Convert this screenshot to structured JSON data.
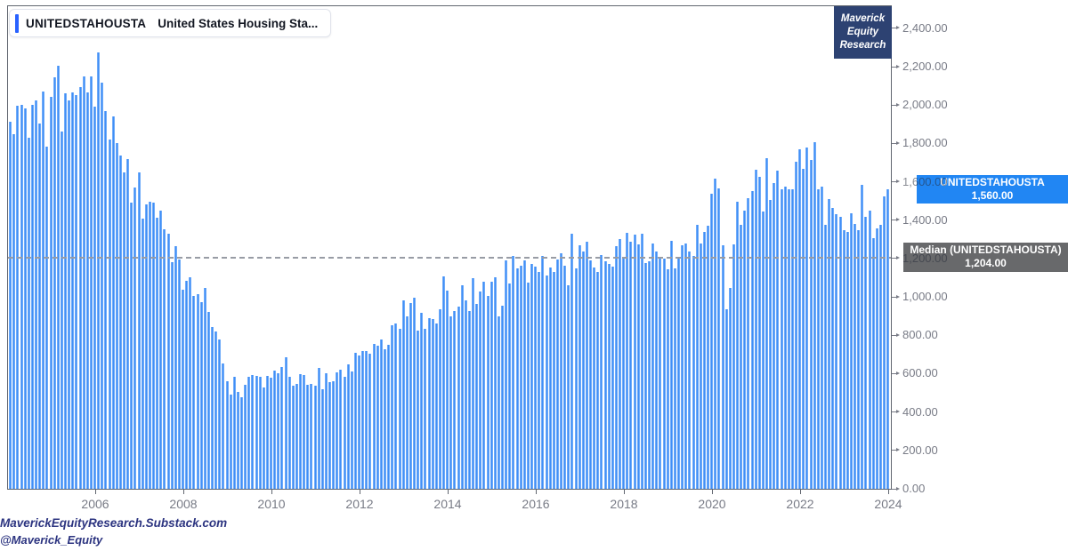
{
  "legend": {
    "symbol": "UNITEDSTAHOUSTA",
    "description": "United States Housing Sta..."
  },
  "watermark": {
    "lines": [
      "Maverick",
      "Equity",
      "Research"
    ]
  },
  "price_labels": {
    "last": {
      "title": "UNITEDSTAHOUSTA",
      "value": "1,560.00"
    },
    "median": {
      "title": "Median (UNITEDSTAHOUSTA)",
      "value": "1,204.00"
    }
  },
  "axis": {
    "y_ticks": [
      {
        "value": 2400,
        "label": "2,400.00"
      },
      {
        "value": 2200,
        "label": "2,200.00"
      },
      {
        "value": 2000,
        "label": "2,000.00"
      },
      {
        "value": 1800,
        "label": "1,800.00"
      },
      {
        "value": 1600,
        "label": "1,600.00"
      },
      {
        "value": 1400,
        "label": "1,400.00"
      },
      {
        "value": 1200,
        "label": "1,200.00"
      },
      {
        "value": 1000,
        "label": "1,000.00"
      },
      {
        "value": 800,
        "label": "800.00"
      },
      {
        "value": 600,
        "label": "600.00"
      },
      {
        "value": 400,
        "label": "400.00"
      },
      {
        "value": 200,
        "label": "200.00"
      },
      {
        "value": 0,
        "label": "0.00"
      }
    ],
    "x_ticks": [
      {
        "year": 2006,
        "label": "2006"
      },
      {
        "year": 2008,
        "label": "2008"
      },
      {
        "year": 2010,
        "label": "2010"
      },
      {
        "year": 2012,
        "label": "2012"
      },
      {
        "year": 2014,
        "label": "2014"
      },
      {
        "year": 2016,
        "label": "2016"
      },
      {
        "year": 2018,
        "label": "2018"
      },
      {
        "year": 2020,
        "label": "2020"
      },
      {
        "year": 2022,
        "label": "2022"
      },
      {
        "year": 2024,
        "label": "2024"
      }
    ]
  },
  "footer": {
    "line1": "MaverickEquityResearch.Substack.com",
    "line2": "@Maverick_Equity"
  },
  "colors": {
    "bar_core": "#3f8ef7",
    "bar_edge": "#9cc6f9",
    "accent_blue": "#2962ff",
    "last_badge": "#2186f3",
    "median_badge": "#68696b",
    "watermark_bg": "#2d4272",
    "footer_text": "#2c3480",
    "axis_text": "#787b86",
    "frame": "#61666f",
    "median_line": "#989ca5",
    "legend_text": "#131722"
  },
  "chart_data": {
    "type": "bar",
    "title": "United States Housing Starts",
    "series_name": "UNITEDSTAHOUSTA",
    "frequency": "monthly",
    "start": "2004-01",
    "end": "2023-12",
    "ylim": [
      0,
      2400
    ],
    "grid": false,
    "legend_position": "top-left",
    "last_value": 1560,
    "median_value": 1204,
    "values": [
      1911,
      1846,
      1998,
      2003,
      1981,
      1828,
      2002,
      2024,
      1905,
      2072,
      1782,
      2042,
      2144,
      2207,
      1864,
      2061,
      2025,
      2068,
      2054,
      2095,
      2151,
      2065,
      2147,
      1994,
      2273,
      2119,
      1969,
      1821,
      1942,
      1802,
      1737,
      1650,
      1720,
      1491,
      1570,
      1649,
      1409,
      1480,
      1495,
      1490,
      1415,
      1448,
      1354,
      1330,
      1183,
      1264,
      1197,
      1037,
      1084,
      1103,
      1005,
      1013,
      973,
      1046,
      923,
      844,
      820,
      777,
      652,
      560,
      490,
      582,
      505,
      478,
      540,
      585,
      594,
      586,
      585,
      527,
      588,
      581,
      614,
      604,
      636,
      687,
      583,
      536,
      546,
      599,
      594,
      543,
      545,
      539,
      630,
      517,
      600,
      554,
      561,
      608,
      623,
      585,
      650,
      610,
      711,
      694,
      720,
      718,
      706,
      754,
      744,
      776,
      728,
      749,
      854,
      863,
      834,
      983,
      898,
      969,
      994,
      826,
      919,
      835,
      891,
      885,
      863,
      936,
      1105,
      1034,
      897,
      928,
      950,
      1063,
      984,
      927,
      1098,
      964,
      1028,
      1080,
      1006,
      1081,
      1101,
      900,
      954,
      1190,
      1071,
      1213,
      1147,
      1164,
      1189,
      1073,
      1171,
      1160,
      1128,
      1213,
      1113,
      1155,
      1128,
      1195,
      1226,
      1164,
      1062,
      1328,
      1149,
      1268,
      1236,
      1288,
      1189,
      1154,
      1129,
      1217,
      1185,
      1172,
      1158,
      1265,
      1303,
      1210,
      1334,
      1290,
      1327,
      1276,
      1329,
      1177,
      1184,
      1279,
      1237,
      1211,
      1202,
      1142,
      1291,
      1149,
      1199,
      1267,
      1278,
      1235,
      1212,
      1377,
      1280,
      1340,
      1371,
      1536,
      1617,
      1567,
      1269,
      938,
      1046,
      1273,
      1497,
      1376,
      1448,
      1514,
      1551,
      1661,
      1625,
      1447,
      1725,
      1505,
      1594,
      1657,
      1562,
      1576,
      1559,
      1563,
      1706,
      1768,
      1666,
      1777,
      1716,
      1805,
      1562,
      1575,
      1377,
      1508,
      1465,
      1432,
      1419,
      1348,
      1340,
      1436,
      1380,
      1348,
      1583,
      1418,
      1451,
      1305,
      1356,
      1376,
      1525,
      1560
    ]
  }
}
